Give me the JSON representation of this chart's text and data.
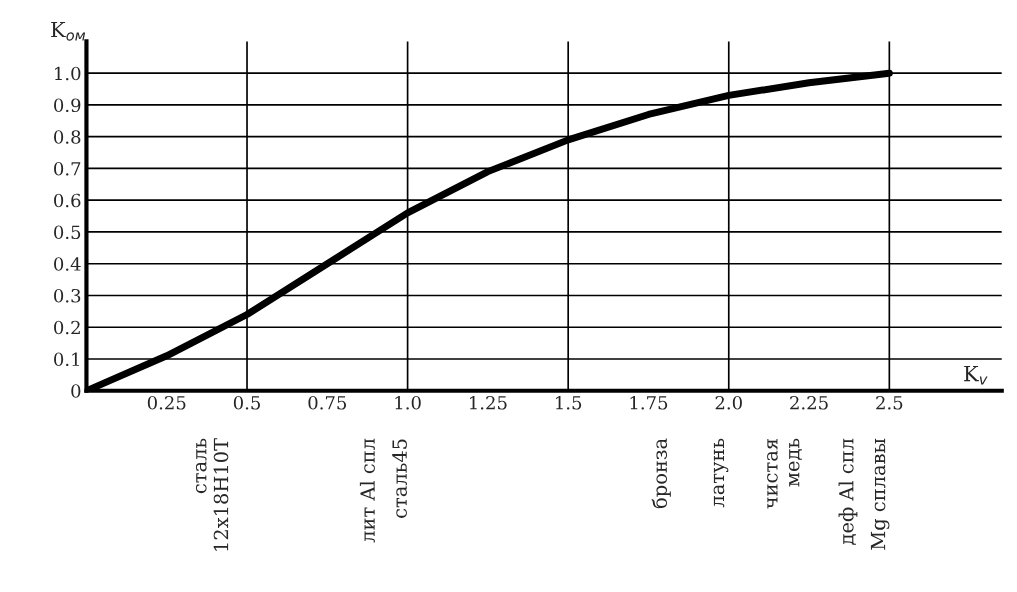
{
  "chart_data": {
    "type": "line",
    "xlabel": "K$_{v}$",
    "ylabel": "K$_{ом}$",
    "x": [
      0,
      0.25,
      0.5,
      0.75,
      1.0,
      1.25,
      1.5,
      1.75,
      2.0,
      2.25,
      2.5
    ],
    "series": [
      {
        "color": "#000000",
        "values": [
          0,
          0.11,
          0.24,
          0.4,
          0.56,
          0.69,
          0.79,
          0.87,
          0.93,
          0.97,
          1.0
        ]
      }
    ],
    "xlim": [
      0,
      2.85
    ],
    "ylim": [
      0,
      1.1
    ],
    "xticks": [
      {
        "value": 0.25,
        "label": "0.25"
      },
      {
        "value": 0.5,
        "label": "0.5"
      },
      {
        "value": 0.75,
        "label": "0.75"
      },
      {
        "value": 1.0,
        "label": "1.0"
      },
      {
        "value": 1.25,
        "label": "1.25"
      },
      {
        "value": 1.5,
        "label": "1.5"
      },
      {
        "value": 1.75,
        "label": "1.75"
      },
      {
        "value": 2.0,
        "label": "2.0"
      },
      {
        "value": 2.25,
        "label": "2.25"
      },
      {
        "value": 2.5,
        "label": "2.5"
      }
    ],
    "yticks": [
      0,
      {
        "value": 0.1,
        "label": "0.1"
      },
      {
        "value": 0.2,
        "label": "0.2"
      },
      {
        "value": 0.3,
        "label": "0.3"
      },
      {
        "value": 0.4,
        "label": "0.4"
      },
      {
        "value": 0.5,
        "label": "0.5"
      },
      {
        "value": 0.6,
        "label": "0.6"
      },
      {
        "value": 0.7,
        "label": "0.7"
      },
      {
        "value": 0.8,
        "label": "0.8"
      },
      {
        "value": 0.9,
        "label": "0.9"
      },
      {
        "value": 1.0,
        "label": "1.0"
      }
    ],
    "grid": "y",
    "marker": "none",
    "line_style": "solid",
    "ref_lines": [
      {
        "axis": "x",
        "value": 0.5,
        "color": "#000000"
      },
      {
        "axis": "x",
        "value": 1.0,
        "color": "#000000"
      },
      {
        "axis": "x",
        "value": 1.5,
        "color": "#000000"
      },
      {
        "axis": "x",
        "value": 2.0,
        "color": "#000000"
      },
      {
        "axis": "x",
        "value": 2.5,
        "color": "#000000"
      }
    ],
    "annotations": [
      "сталь\n12х18Н10Т",
      "лит Al спл",
      "сталь45",
      "бронза",
      "латунь",
      "чистая\nмедь",
      "деф Al спл",
      "Mg сплавы"
    ]
  }
}
